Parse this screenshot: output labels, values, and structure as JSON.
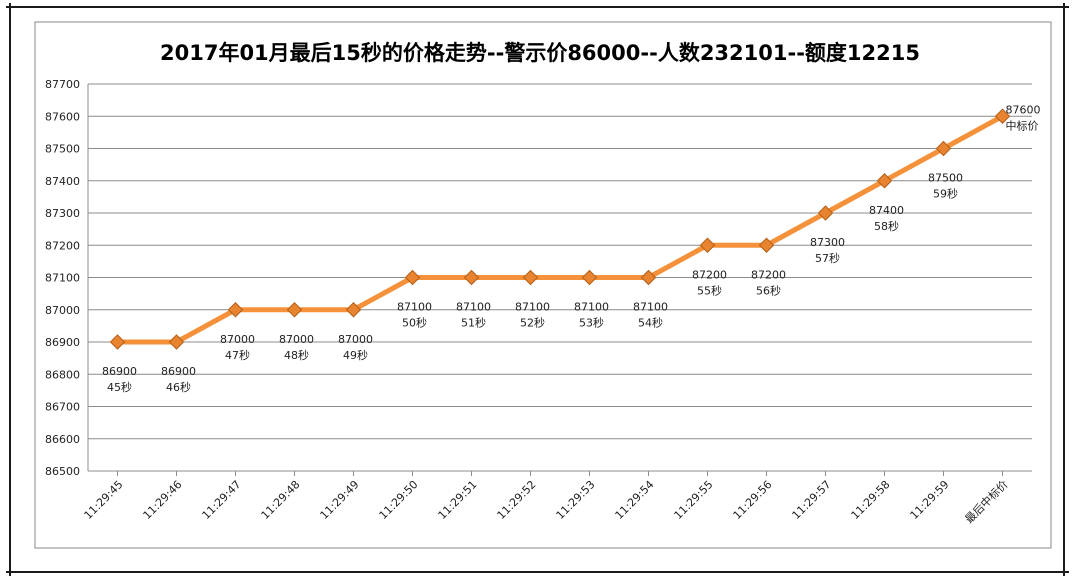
{
  "chart_data": {
    "type": "line",
    "title": "2017年01月最后15秒的价格走势--警示价86000--人数232101--额度12215",
    "categories": [
      "11:29:45",
      "11:29:46",
      "11:29:47",
      "11:29:48",
      "11:29:49",
      "11:29:50",
      "11:29:51",
      "11:29:52",
      "11:29:53",
      "11:29:54",
      "11:29:55",
      "11:29:56",
      "11:29:57",
      "11:29:58",
      "11:29:59",
      "最后中标价"
    ],
    "values": [
      86900,
      86900,
      87000,
      87000,
      87000,
      87100,
      87100,
      87100,
      87100,
      87100,
      87200,
      87200,
      87300,
      87400,
      87500,
      87600
    ],
    "data_labels": [
      [
        "86900",
        "45秒"
      ],
      [
        "86900",
        "46秒"
      ],
      [
        "87000",
        "47秒"
      ],
      [
        "87000",
        "48秒"
      ],
      [
        "87000",
        "49秒"
      ],
      [
        "87100",
        "50秒"
      ],
      [
        "87100",
        "51秒"
      ],
      [
        "87100",
        "52秒"
      ],
      [
        "87100",
        "53秒"
      ],
      [
        "87100",
        "54秒"
      ],
      [
        "87200",
        "55秒"
      ],
      [
        "87200",
        "56秒"
      ],
      [
        "87300",
        "57秒"
      ],
      [
        "87400",
        "58秒"
      ],
      [
        "87500",
        "59秒"
      ],
      [
        "87600",
        "中标价"
      ]
    ],
    "ylim": [
      86500,
      87700
    ],
    "yticks": [
      86500,
      86600,
      86700,
      86800,
      86900,
      87000,
      87100,
      87200,
      87300,
      87400,
      87500,
      87600,
      87700
    ],
    "grid": true,
    "legend": "none",
    "colors": {
      "line": "#F4913A",
      "marker": "#E8842F",
      "marker_edge": "#B35E18",
      "grid": "#8c8c8c"
    }
  }
}
